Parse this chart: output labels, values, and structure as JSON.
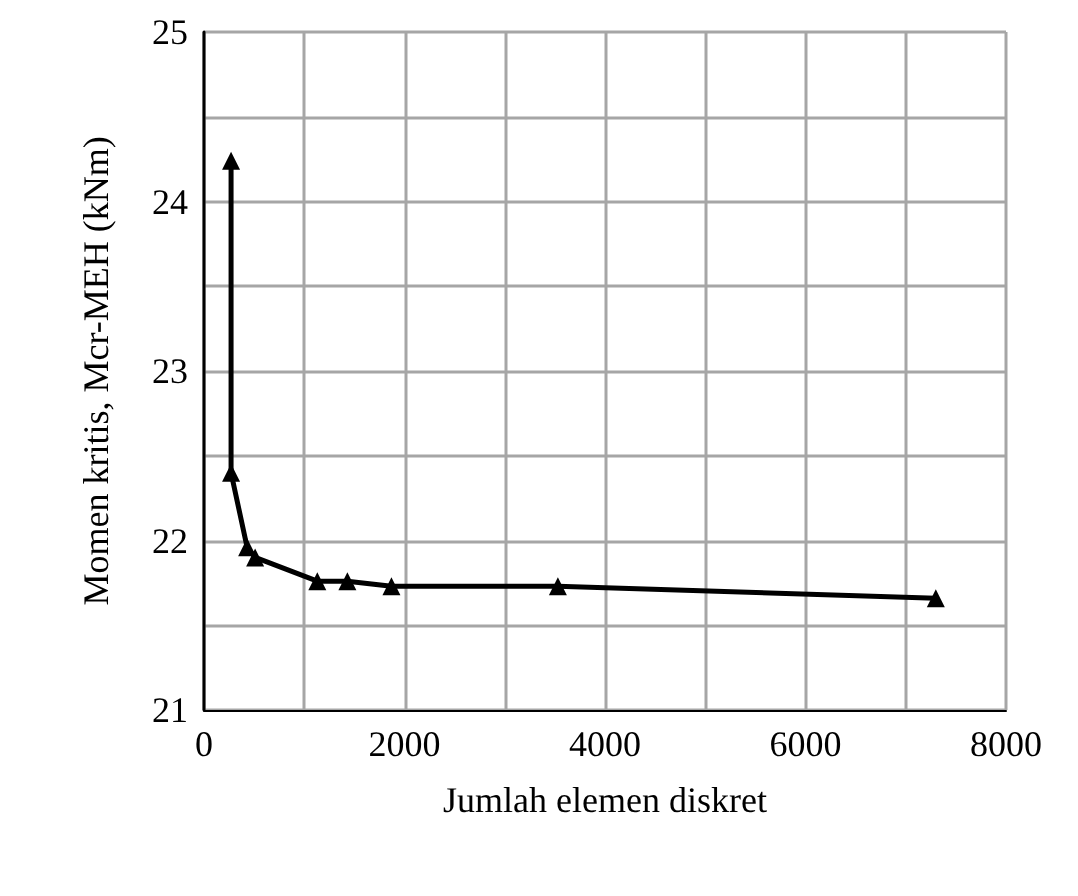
{
  "chart_data": {
    "type": "line",
    "xlabel": "Jumlah elemen diskret",
    "ylabel": "Momen kritis, Mcr-MEH (kNm)",
    "x": [
      270,
      270,
      430,
      510,
      1130,
      1430,
      1870,
      3530,
      7300
    ],
    "series": [
      {
        "color": "#000000",
        "values": [
          24.24,
          22.4,
          21.96,
          21.9,
          21.76,
          21.76,
          21.73,
          21.73,
          21.66
        ]
      }
    ],
    "xlim": [
      0,
      8000
    ],
    "xticks": [
      0,
      {
        "value": 1000,
        "label": null
      },
      2000,
      {
        "value": 3000,
        "label": null
      },
      4000,
      {
        "value": 5000,
        "label": null
      },
      6000,
      {
        "value": 7000,
        "label": null
      },
      8000
    ],
    "ylim": [
      21,
      25
    ],
    "yticks": [
      21,
      {
        "value": 21.5,
        "label": null
      },
      22,
      {
        "value": 22.5,
        "label": null
      },
      23,
      {
        "value": 23.5,
        "label": null
      },
      24,
      {
        "value": 24.5,
        "label": null
      },
      25
    ],
    "grid": true,
    "marker": "triangle",
    "line_style": "solid"
  }
}
